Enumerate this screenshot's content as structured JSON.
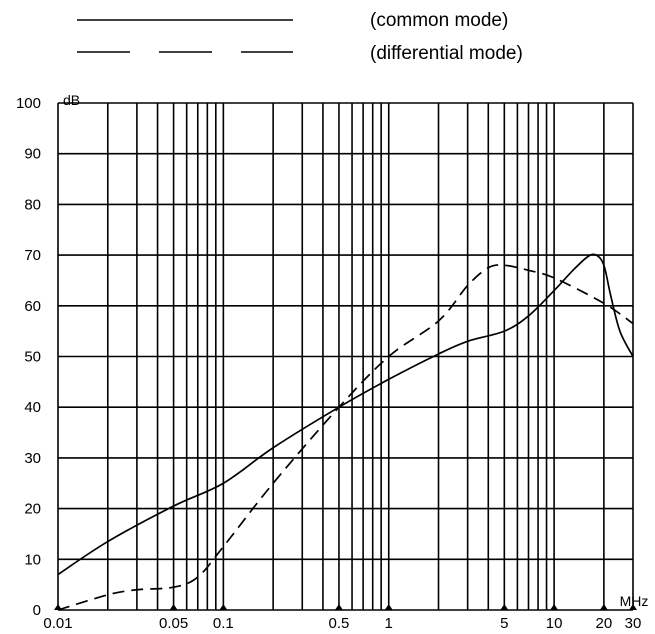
{
  "chart_data": {
    "type": "line",
    "title": "",
    "xlabel": "",
    "ylabel": "",
    "x_unit": "MHz",
    "y_unit": "dB",
    "x_scale": "log",
    "xlim": [
      0.01,
      30
    ],
    "ylim": [
      0,
      100
    ],
    "grid": true,
    "legend_position": "top-center",
    "x_tick_labels": [
      "0.01",
      "0.05",
      "0.1",
      "0.5",
      "1",
      "5",
      "10",
      "20",
      "30"
    ],
    "y_tick_labels": [
      "0",
      "10",
      "20",
      "30",
      "40",
      "50",
      "60",
      "70",
      "80",
      "90",
      "100"
    ],
    "series": [
      {
        "name": "(common mode)",
        "line_style": "solid",
        "x": [
          0.01,
          0.02,
          0.05,
          0.1,
          0.2,
          0.5,
          1,
          2,
          3,
          5,
          7,
          10,
          13,
          16,
          18,
          20,
          22,
          25,
          30
        ],
        "y": [
          7,
          13.5,
          20.5,
          25,
          32,
          40,
          45.5,
          50.5,
          53,
          55,
          58,
          63,
          67,
          69.7,
          70,
          68,
          62,
          55,
          50
        ]
      },
      {
        "name": "(differential mode)",
        "line_style": "dashed",
        "x": [
          0.01,
          0.02,
          0.03,
          0.05,
          0.07,
          0.1,
          0.2,
          0.5,
          1,
          2,
          3,
          4,
          5,
          7,
          10,
          20,
          30
        ],
        "y": [
          0,
          3,
          4,
          4.5,
          6.5,
          12.5,
          25,
          40,
          50,
          57,
          64,
          67.5,
          68,
          67,
          65.5,
          60.5,
          56.5
        ]
      }
    ]
  }
}
